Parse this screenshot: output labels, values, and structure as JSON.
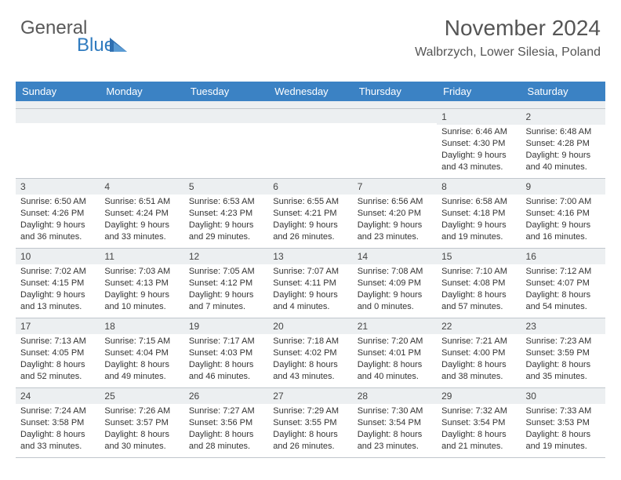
{
  "logo": {
    "word1": "General",
    "word2": "Blue",
    "word1_color": "#595959",
    "word2_color": "#2f7bbf",
    "triangle_color": "#2f6fb0"
  },
  "header": {
    "month_title": "November 2024",
    "location": "Walbrzych, Lower Silesia, Poland"
  },
  "styling": {
    "header_bg": "#3b82c4",
    "header_text": "#ffffff",
    "daynum_bg": "#eceff1",
    "border_color": "#c0c6cc",
    "body_text": "#333333",
    "font_size_header": 13,
    "font_size_body": 11
  },
  "day_headers": [
    "Sunday",
    "Monday",
    "Tuesday",
    "Wednesday",
    "Thursday",
    "Friday",
    "Saturday"
  ],
  "weeks": [
    [
      {
        "num": "",
        "lines": []
      },
      {
        "num": "",
        "lines": []
      },
      {
        "num": "",
        "lines": []
      },
      {
        "num": "",
        "lines": []
      },
      {
        "num": "",
        "lines": []
      },
      {
        "num": "1",
        "lines": [
          "Sunrise: 6:46 AM",
          "Sunset: 4:30 PM",
          "Daylight: 9 hours",
          "and 43 minutes."
        ]
      },
      {
        "num": "2",
        "lines": [
          "Sunrise: 6:48 AM",
          "Sunset: 4:28 PM",
          "Daylight: 9 hours",
          "and 40 minutes."
        ]
      }
    ],
    [
      {
        "num": "3",
        "lines": [
          "Sunrise: 6:50 AM",
          "Sunset: 4:26 PM",
          "Daylight: 9 hours",
          "and 36 minutes."
        ]
      },
      {
        "num": "4",
        "lines": [
          "Sunrise: 6:51 AM",
          "Sunset: 4:24 PM",
          "Daylight: 9 hours",
          "and 33 minutes."
        ]
      },
      {
        "num": "5",
        "lines": [
          "Sunrise: 6:53 AM",
          "Sunset: 4:23 PM",
          "Daylight: 9 hours",
          "and 29 minutes."
        ]
      },
      {
        "num": "6",
        "lines": [
          "Sunrise: 6:55 AM",
          "Sunset: 4:21 PM",
          "Daylight: 9 hours",
          "and 26 minutes."
        ]
      },
      {
        "num": "7",
        "lines": [
          "Sunrise: 6:56 AM",
          "Sunset: 4:20 PM",
          "Daylight: 9 hours",
          "and 23 minutes."
        ]
      },
      {
        "num": "8",
        "lines": [
          "Sunrise: 6:58 AM",
          "Sunset: 4:18 PM",
          "Daylight: 9 hours",
          "and 19 minutes."
        ]
      },
      {
        "num": "9",
        "lines": [
          "Sunrise: 7:00 AM",
          "Sunset: 4:16 PM",
          "Daylight: 9 hours",
          "and 16 minutes."
        ]
      }
    ],
    [
      {
        "num": "10",
        "lines": [
          "Sunrise: 7:02 AM",
          "Sunset: 4:15 PM",
          "Daylight: 9 hours",
          "and 13 minutes."
        ]
      },
      {
        "num": "11",
        "lines": [
          "Sunrise: 7:03 AM",
          "Sunset: 4:13 PM",
          "Daylight: 9 hours",
          "and 10 minutes."
        ]
      },
      {
        "num": "12",
        "lines": [
          "Sunrise: 7:05 AM",
          "Sunset: 4:12 PM",
          "Daylight: 9 hours",
          "and 7 minutes."
        ]
      },
      {
        "num": "13",
        "lines": [
          "Sunrise: 7:07 AM",
          "Sunset: 4:11 PM",
          "Daylight: 9 hours",
          "and 4 minutes."
        ]
      },
      {
        "num": "14",
        "lines": [
          "Sunrise: 7:08 AM",
          "Sunset: 4:09 PM",
          "Daylight: 9 hours",
          "and 0 minutes."
        ]
      },
      {
        "num": "15",
        "lines": [
          "Sunrise: 7:10 AM",
          "Sunset: 4:08 PM",
          "Daylight: 8 hours",
          "and 57 minutes."
        ]
      },
      {
        "num": "16",
        "lines": [
          "Sunrise: 7:12 AM",
          "Sunset: 4:07 PM",
          "Daylight: 8 hours",
          "and 54 minutes."
        ]
      }
    ],
    [
      {
        "num": "17",
        "lines": [
          "Sunrise: 7:13 AM",
          "Sunset: 4:05 PM",
          "Daylight: 8 hours",
          "and 52 minutes."
        ]
      },
      {
        "num": "18",
        "lines": [
          "Sunrise: 7:15 AM",
          "Sunset: 4:04 PM",
          "Daylight: 8 hours",
          "and 49 minutes."
        ]
      },
      {
        "num": "19",
        "lines": [
          "Sunrise: 7:17 AM",
          "Sunset: 4:03 PM",
          "Daylight: 8 hours",
          "and 46 minutes."
        ]
      },
      {
        "num": "20",
        "lines": [
          "Sunrise: 7:18 AM",
          "Sunset: 4:02 PM",
          "Daylight: 8 hours",
          "and 43 minutes."
        ]
      },
      {
        "num": "21",
        "lines": [
          "Sunrise: 7:20 AM",
          "Sunset: 4:01 PM",
          "Daylight: 8 hours",
          "and 40 minutes."
        ]
      },
      {
        "num": "22",
        "lines": [
          "Sunrise: 7:21 AM",
          "Sunset: 4:00 PM",
          "Daylight: 8 hours",
          "and 38 minutes."
        ]
      },
      {
        "num": "23",
        "lines": [
          "Sunrise: 7:23 AM",
          "Sunset: 3:59 PM",
          "Daylight: 8 hours",
          "and 35 minutes."
        ]
      }
    ],
    [
      {
        "num": "24",
        "lines": [
          "Sunrise: 7:24 AM",
          "Sunset: 3:58 PM",
          "Daylight: 8 hours",
          "and 33 minutes."
        ]
      },
      {
        "num": "25",
        "lines": [
          "Sunrise: 7:26 AM",
          "Sunset: 3:57 PM",
          "Daylight: 8 hours",
          "and 30 minutes."
        ]
      },
      {
        "num": "26",
        "lines": [
          "Sunrise: 7:27 AM",
          "Sunset: 3:56 PM",
          "Daylight: 8 hours",
          "and 28 minutes."
        ]
      },
      {
        "num": "27",
        "lines": [
          "Sunrise: 7:29 AM",
          "Sunset: 3:55 PM",
          "Daylight: 8 hours",
          "and 26 minutes."
        ]
      },
      {
        "num": "28",
        "lines": [
          "Sunrise: 7:30 AM",
          "Sunset: 3:54 PM",
          "Daylight: 8 hours",
          "and 23 minutes."
        ]
      },
      {
        "num": "29",
        "lines": [
          "Sunrise: 7:32 AM",
          "Sunset: 3:54 PM",
          "Daylight: 8 hours",
          "and 21 minutes."
        ]
      },
      {
        "num": "30",
        "lines": [
          "Sunrise: 7:33 AM",
          "Sunset: 3:53 PM",
          "Daylight: 8 hours",
          "and 19 minutes."
        ]
      }
    ]
  ]
}
